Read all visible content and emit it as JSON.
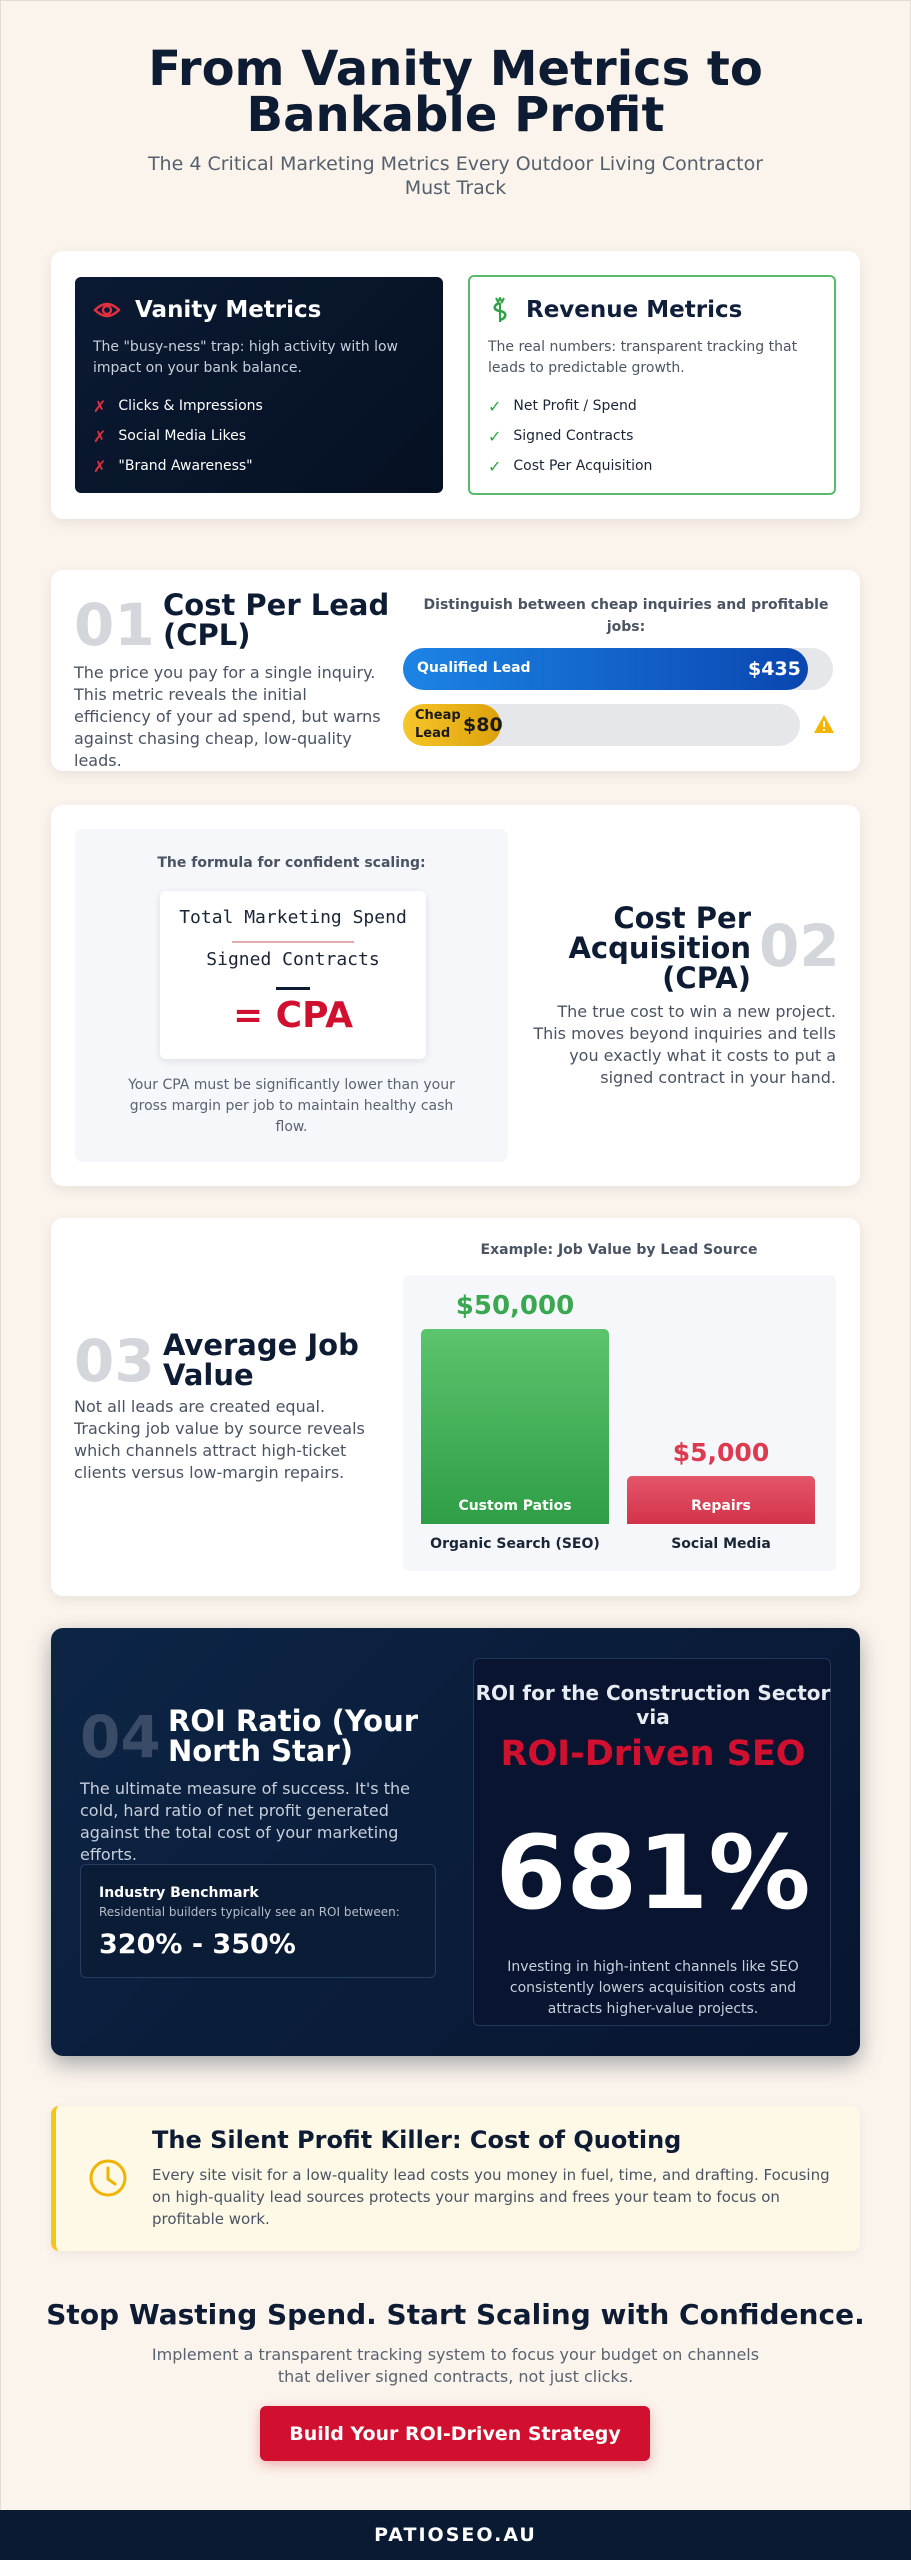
{
  "header": {
    "title": "From Vanity Metrics to Bankable Profit",
    "subtitle": "The 4 Critical Marketing Metrics Every Outdoor Living Contractor Must Track"
  },
  "comparison": {
    "vanity": {
      "title": "Vanity Metrics",
      "icon": "eye-icon",
      "desc": "The \"busy-ness\" trap: high activity with low impact on your bank balance.",
      "items": [
        "Clicks & Impressions",
        "Social Media Likes",
        "\"Brand Awareness\""
      ],
      "mark": "✗"
    },
    "revenue": {
      "title": "Revenue Metrics",
      "icon": "money-icon",
      "desc": "The real numbers: transparent tracking that leads to predictable growth.",
      "items": [
        "Net Profit / Spend",
        "Signed Contracts",
        "Cost Per Acquisition"
      ],
      "mark": "✓"
    }
  },
  "cpl": {
    "number": "01",
    "title": "Cost Per Lead (CPL)",
    "desc": "The price you pay for a single inquiry. This metric reveals the initial efficiency of your ad spend, but warns against chasing cheap, low-quality leads.",
    "chart_title": "Distinguish between cheap inquiries and profitable jobs:",
    "qualified_label": "Qualified Lead",
    "qualified_value": "$435",
    "cheap_label": "Cheap Lead",
    "cheap_value": "$80"
  },
  "cpa": {
    "number": "02",
    "title": "Cost Per Acquisition (CPA)",
    "desc": "The true cost to win a new project. This moves beyond inquiries and tells you exactly what it costs to put a signed contract in your hand.",
    "formula_title": "The formula for confident scaling:",
    "numerator": "Total Marketing Spend",
    "denominator": "Signed Contracts",
    "result": "= CPA",
    "note": "Your CPA must be significantly lower than your gross margin per job to maintain healthy cash flow."
  },
  "ajv": {
    "number": "03",
    "title": "Average Job Value",
    "desc": "Not all leads are created equal. Tracking job value by source reveals which channels attract high-ticket clients versus low-margin repairs."
  },
  "chart_data": {
    "type": "bar",
    "title": "Example: Job Value by Lead Source",
    "categories": [
      "Organic Search (SEO)",
      "Social Media"
    ],
    "values": [
      50000,
      5000
    ],
    "value_labels": [
      "$50,000",
      "$5,000"
    ],
    "bar_labels": [
      "Custom Patios",
      "Repairs"
    ],
    "colors": [
      "#3aa851",
      "#dd3a50"
    ]
  },
  "roi": {
    "number": "04",
    "title": "ROI Ratio (Your North Star)",
    "desc": "The ultimate measure of success. It's the cold, hard ratio of net profit generated against the total cost of your marketing efforts.",
    "benchmark_title": "Industry Benchmark",
    "benchmark_sub": "Residential builders typically see an ROI between:",
    "benchmark_value": "320% - 350%",
    "panel_title": "ROI for the Construction Sector via",
    "panel_highlight": "ROI-Driven SEO",
    "panel_value": "681%",
    "panel_note": "Investing in high-intent channels like SEO consistently lowers acquisition costs and attracts higher-value projects."
  },
  "quote": {
    "title": "The Silent Profit Killer: Cost of Quoting",
    "desc": "Every site visit for a low-quality lead costs you money in fuel, time, and drafting. Focusing on high-quality lead sources protects your margins and frees your team to focus on profitable work."
  },
  "cta": {
    "title": "Stop Wasting Spend. Start Scaling with Confidence.",
    "subtitle": "Implement a transparent tracking system to focus your budget on channels that deliver signed contracts, not just clicks.",
    "button": "Build Your ROI-Driven Strategy"
  },
  "footer": {
    "brand": "PATIOSEO.AU"
  }
}
